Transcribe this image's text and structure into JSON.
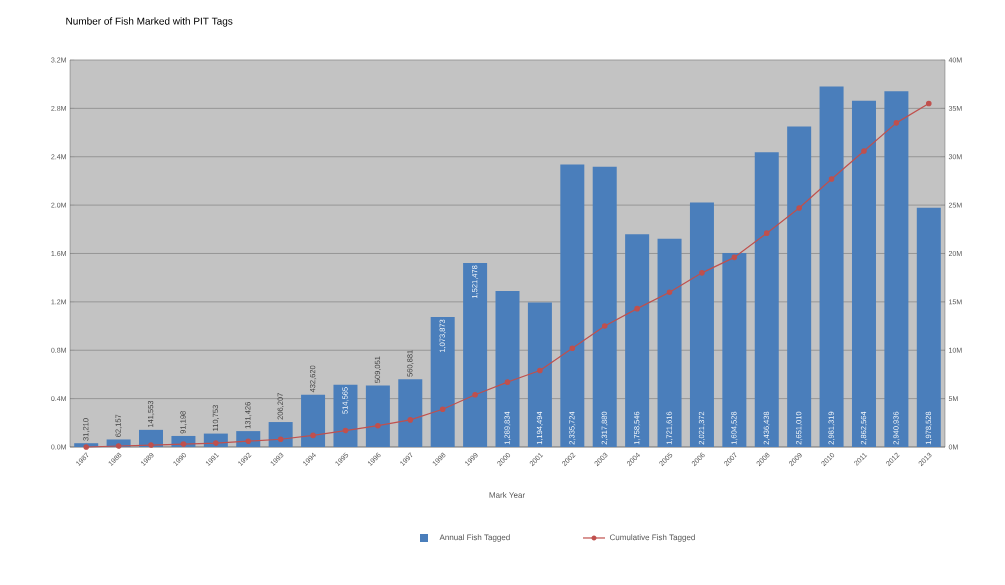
{
  "chart_data": {
    "type": "bar",
    "title": "Number of Fish Marked with PIT Tags",
    "xlabel": "Mark Year",
    "categories": [
      "1987",
      "1988",
      "1989",
      "1990",
      "1991",
      "1992",
      "1993",
      "1994",
      "1995",
      "1996",
      "1997",
      "1998",
      "1999",
      "2000",
      "2001",
      "2002",
      "2003",
      "2004",
      "2005",
      "2006",
      "2007",
      "2008",
      "2009",
      "2010",
      "2011",
      "2012",
      "2013"
    ],
    "series": [
      {
        "name": "Annual Fish Tagged",
        "color": "#4a7ebb",
        "values": [
          31210,
          62157,
          141553,
          91198,
          110753,
          131426,
          206207,
          432620,
          514565,
          509051,
          560881,
          1073873,
          1521478,
          1289834,
          1194494,
          2335724,
          2317880,
          1758546,
          1721616,
          2021372,
          1604528,
          2436438,
          2651010,
          2981319,
          2862564,
          2940936,
          1978528
        ],
        "value_labels": [
          "31,210",
          "62,157",
          "141,553",
          "91,198",
          "110,753",
          "131,426",
          "206,207",
          "432,620",
          "514,565",
          "509,051",
          "560,881",
          "1,073,873",
          "1,521,478",
          "1,289,834",
          "1,194,494",
          "2,335,724",
          "2,317,880",
          "1,758,546",
          "1,721,616",
          "2,021,372",
          "1,604,528",
          "2,436,438",
          "2,651,010",
          "2,981,319",
          "2,862,564",
          "2,940,936",
          "1,978,528"
        ]
      },
      {
        "name": "Cumulative Fish Tagged",
        "type": "line",
        "axis": "y2",
        "color": "#c0504d",
        "marker": "circle",
        "values": [
          0,
          100000,
          200000,
          300000,
          400000,
          600000,
          800000,
          1200000,
          1700000,
          2200000,
          2800000,
          3900000,
          5400000,
          6700000,
          7900000,
          10200000,
          12500000,
          14300000,
          16000000,
          18000000,
          19600000,
          22100000,
          24700000,
          27700000,
          30600000,
          33500000,
          35500000
        ]
      }
    ],
    "ylim": [
      0,
      3200000
    ],
    "yticks": [
      {
        "value": 0,
        "label": "0.0M"
      },
      {
        "value": 400000,
        "label": "0.4M"
      },
      {
        "value": 800000,
        "label": "0.8M"
      },
      {
        "value": 1200000,
        "label": "1.2M"
      },
      {
        "value": 1600000,
        "label": "1.6M"
      },
      {
        "value": 2000000,
        "label": "2.0M"
      },
      {
        "value": 2400000,
        "label": "2.4M"
      },
      {
        "value": 2800000,
        "label": "2.8M"
      },
      {
        "value": 3200000,
        "label": "3.2M"
      }
    ],
    "y2lim": [
      0,
      40000000
    ],
    "y2ticks": [
      {
        "value": 0,
        "label": "0M"
      },
      {
        "value": 5000000,
        "label": "5M"
      },
      {
        "value": 10000000,
        "label": "10M"
      },
      {
        "value": 15000000,
        "label": "15M"
      },
      {
        "value": 20000000,
        "label": "20M"
      },
      {
        "value": 25000000,
        "label": "25M"
      },
      {
        "value": 30000000,
        "label": "30M"
      },
      {
        "value": 35000000,
        "label": "35M"
      },
      {
        "value": 40000000,
        "label": "40M"
      }
    ],
    "grid": "y",
    "legend": "bottom"
  }
}
